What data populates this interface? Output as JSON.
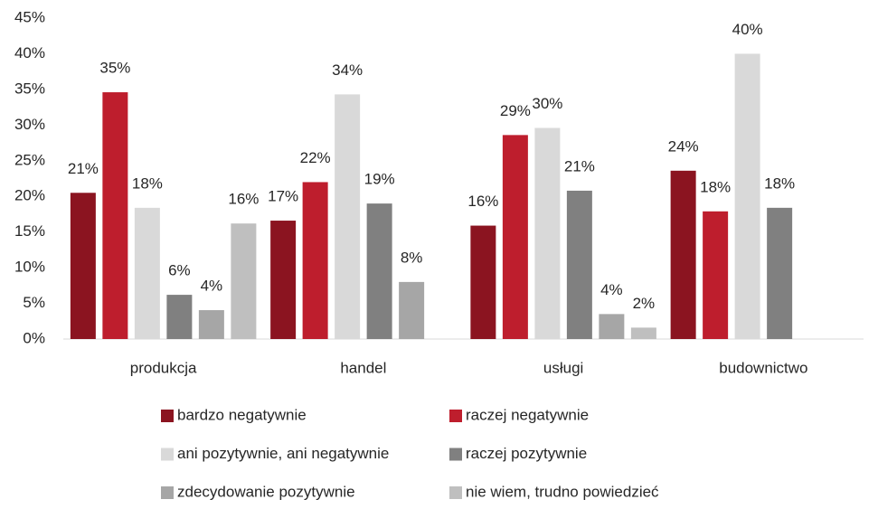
{
  "chart_data": {
    "type": "bar",
    "categories": [
      "produkcja",
      "handel",
      "usługi",
      "budownictwo"
    ],
    "series": [
      {
        "name": "bardzo negatywnie",
        "color": "#8b1420",
        "values": [
          20.5,
          16.6,
          15.9,
          23.6
        ],
        "value_labels": [
          "21%",
          "17%",
          "16%",
          "24%"
        ]
      },
      {
        "name": "raczej negatywnie",
        "color": "#be1e2d",
        "values": [
          34.6,
          22,
          28.6,
          17.9
        ],
        "value_labels": [
          "35%",
          "22%",
          "29%",
          "18%"
        ]
      },
      {
        "name": "ani pozytywnie, ani negatywnie",
        "color": "#d9d9d9",
        "values": [
          18.4,
          34.3,
          29.6,
          40
        ],
        "value_labels": [
          "18%",
          "34%",
          "30%",
          "40%"
        ]
      },
      {
        "name": "raczej pozytywnie",
        "color": "#808080",
        "values": [
          6.2,
          19,
          20.8,
          18.4
        ],
        "value_labels": [
          "6%",
          "19%",
          "21%",
          "18%"
        ]
      },
      {
        "name": "zdecydowanie pozytywnie",
        "color": "#a6a6a6",
        "values": [
          4.05,
          8,
          3.5,
          null
        ],
        "value_labels": [
          "4%",
          "8%",
          "4%",
          null
        ]
      },
      {
        "name": "nie wiem, trudno powiedzieć",
        "color": "#bfbfbf",
        "values": [
          16.2,
          null,
          1.6,
          null
        ],
        "value_labels": [
          "16%",
          null,
          "2%",
          null
        ]
      }
    ],
    "ylim": [
      0,
      45
    ],
    "yticks": [
      {
        "value": 0,
        "label": "0%"
      },
      {
        "value": 5,
        "label": "5%"
      },
      {
        "value": 10,
        "label": "10%"
      },
      {
        "value": 15,
        "label": "15%"
      },
      {
        "value": 20,
        "label": "20%"
      },
      {
        "value": 25,
        "label": "25%"
      },
      {
        "value": 30,
        "label": "30%"
      },
      {
        "value": 35,
        "label": "35%"
      },
      {
        "value": 40,
        "label": "40%"
      },
      {
        "value": 45,
        "label": "45%"
      }
    ],
    "grid": false
  }
}
